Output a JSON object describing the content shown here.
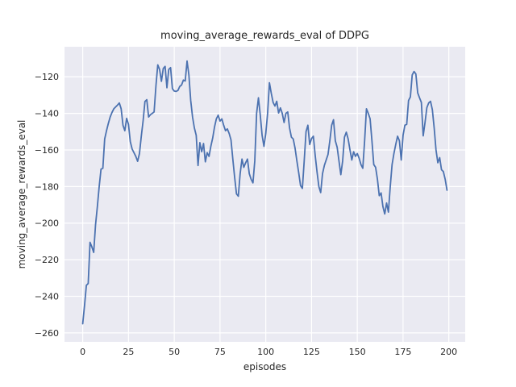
{
  "chart_data": {
    "type": "line",
    "title": "moving_average_rewards_eval of DDPG",
    "xlabel": "episodes",
    "ylabel": "moving_average_rewards_eval",
    "grid": true,
    "legend": false,
    "plot_bg_color": "#eaeaf2",
    "grid_color": "#ffffff",
    "text_color": "#262626",
    "fig_bg_color": "#ffffff",
    "line_color": "#4c72b0",
    "xlim": [
      -9.95,
      208.95
    ],
    "ylim": [
      -264.9,
      -103.6
    ],
    "x_ticks": [
      0,
      25,
      50,
      75,
      100,
      125,
      150,
      175,
      200
    ],
    "y_ticks": [
      -120,
      -140,
      -160,
      -180,
      -200,
      -220,
      -240,
      -260
    ],
    "series": [
      {
        "name": "moving_average_rewards_eval",
        "x_start": 0,
        "x_step": 1,
        "values": [
          -255,
          -245,
          -234,
          -233,
          -210.5,
          -213,
          -216,
          -201,
          -191,
          -180,
          -170.5,
          -170,
          -154,
          -149.5,
          -145.5,
          -142,
          -139.5,
          -137.5,
          -136.5,
          -135.5,
          -134.3,
          -137.5,
          -146.5,
          -149.5,
          -142.7,
          -146,
          -155.5,
          -159.5,
          -161.5,
          -163.5,
          -166.2,
          -162,
          -152.5,
          -144,
          -133.5,
          -132.5,
          -142,
          -140.7,
          -140,
          -139.2,
          -125,
          -113.5,
          -116,
          -122.5,
          -115.5,
          -114.3,
          -126,
          -116,
          -115,
          -126.5,
          -127.8,
          -128,
          -127.5,
          -125.3,
          -124.5,
          -121.8,
          -122.3,
          -111.4,
          -119,
          -133,
          -142,
          -148,
          -152,
          -168.5,
          -156,
          -161,
          -156.5,
          -166.5,
          -161.5,
          -163.5,
          -158,
          -153.5,
          -147.5,
          -143,
          -141,
          -144.2,
          -143,
          -146.5,
          -149.5,
          -148.5,
          -151,
          -154.5,
          -165,
          -175,
          -184,
          -185.3,
          -173,
          -165,
          -169.5,
          -167,
          -165,
          -173,
          -176,
          -178,
          -166,
          -140,
          -131.5,
          -141,
          -152,
          -158,
          -151,
          -140,
          -123.3,
          -129,
          -134,
          -136,
          -133.4,
          -139.8,
          -137,
          -140,
          -145,
          -140,
          -139.2,
          -148,
          -153,
          -154,
          -159,
          -166,
          -172.5,
          -179.5,
          -181,
          -166,
          -150,
          -146.5,
          -157,
          -153.8,
          -152.5,
          -163,
          -172,
          -180,
          -183.3,
          -173,
          -168.5,
          -165.5,
          -162.5,
          -155,
          -146.5,
          -143.5,
          -155,
          -158.5,
          -166,
          -173.5,
          -166,
          -153,
          -150.3,
          -154,
          -160,
          -165.5,
          -161,
          -163.5,
          -162,
          -164.5,
          -168,
          -170,
          -155,
          -137.5,
          -140,
          -143,
          -155,
          -168,
          -169.5,
          -176,
          -185,
          -183.5,
          -191,
          -195,
          -189,
          -194,
          -180,
          -168,
          -162,
          -157,
          -152.5,
          -155,
          -165.5,
          -152,
          -146.5,
          -146,
          -133,
          -131,
          -119,
          -117.1,
          -118.5,
          -128.8,
          -131.5,
          -134,
          -152.3,
          -145,
          -136.9,
          -134.3,
          -133.4,
          -138,
          -148,
          -160,
          -167,
          -164.2,
          -170.8,
          -171.8,
          -176,
          -182
        ]
      }
    ]
  }
}
